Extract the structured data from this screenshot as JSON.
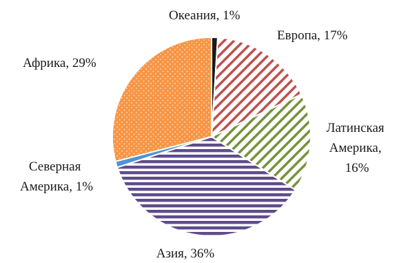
{
  "chart_data": {
    "type": "pie",
    "title": "",
    "start_angle_deg": 0,
    "direction": "clockwise",
    "slices": [
      {
        "label_lines": [
          "Океания, 1%"
        ],
        "value": 1,
        "color": "#1a1a1a",
        "pattern": "solid"
      },
      {
        "label_lines": [
          "Европа, 17%"
        ],
        "value": 17,
        "color": "#c0504d",
        "pattern": "diagonal-hatch"
      },
      {
        "label_lines": [
          "Латинская",
          "Америка,",
          "16%"
        ],
        "value": 16,
        "color": "#76923c",
        "pattern": "diagonal-hatch"
      },
      {
        "label_lines": [
          "Азия, 36%"
        ],
        "value": 36,
        "color": "#5f4b8b",
        "pattern": "horizontal-lines"
      },
      {
        "label_lines": [
          "Северная",
          "Америка, 1%"
        ],
        "value": 1,
        "color": "#4f93d6",
        "pattern": "solid"
      },
      {
        "label_lines": [
          "Африка, 29%"
        ],
        "value": 29,
        "color": "#f79646",
        "pattern": "dots"
      }
    ]
  }
}
